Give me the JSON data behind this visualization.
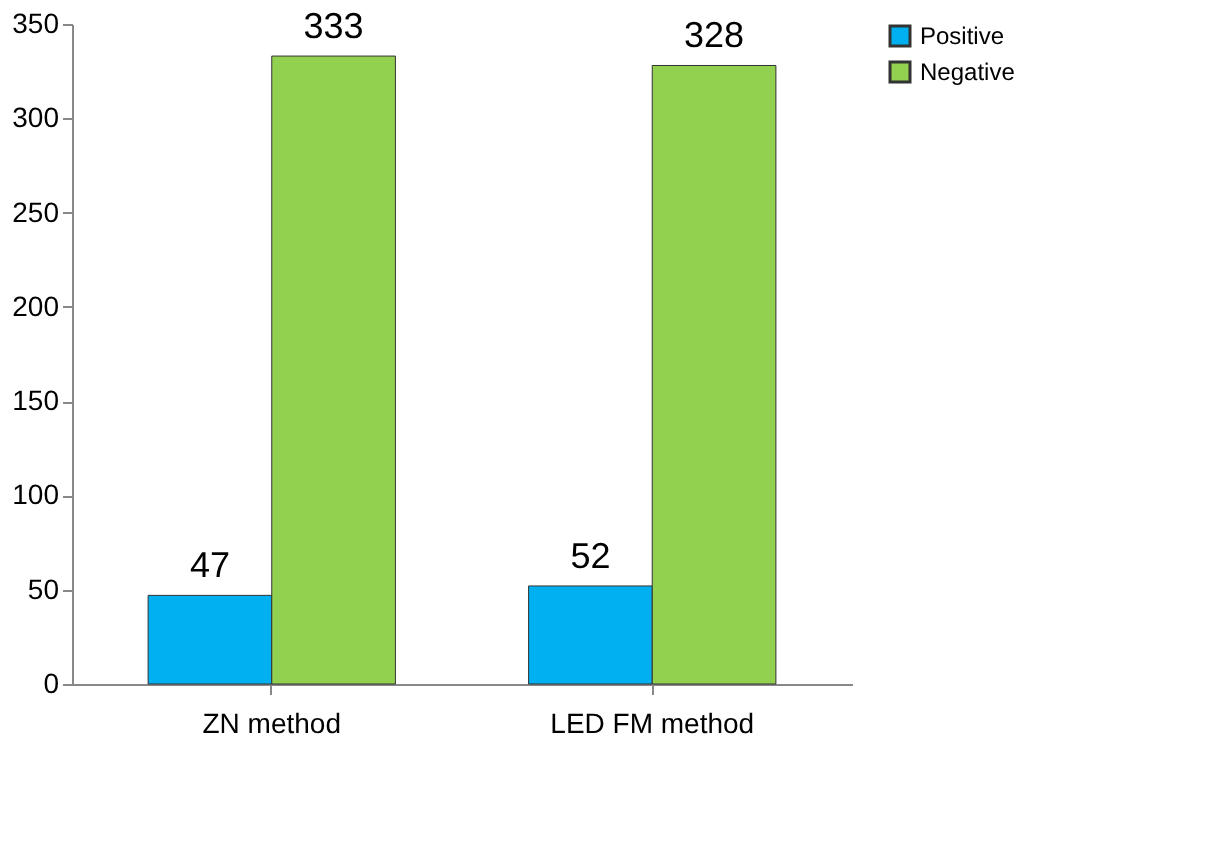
{
  "chart_data": {
    "type": "bar",
    "categories": [
      "ZN method",
      "LED FM method"
    ],
    "series": [
      {
        "name": "Positive",
        "color": "#00b0f0",
        "values": [
          47,
          52
        ]
      },
      {
        "name": "Negative",
        "color": "#92d050",
        "values": [
          333,
          328
        ]
      }
    ],
    "ylim": [
      0,
      350
    ],
    "yticks": [
      0,
      50,
      100,
      150,
      200,
      250,
      300,
      350
    ],
    "grid": false,
    "legend": "right",
    "data_labels": true
  }
}
